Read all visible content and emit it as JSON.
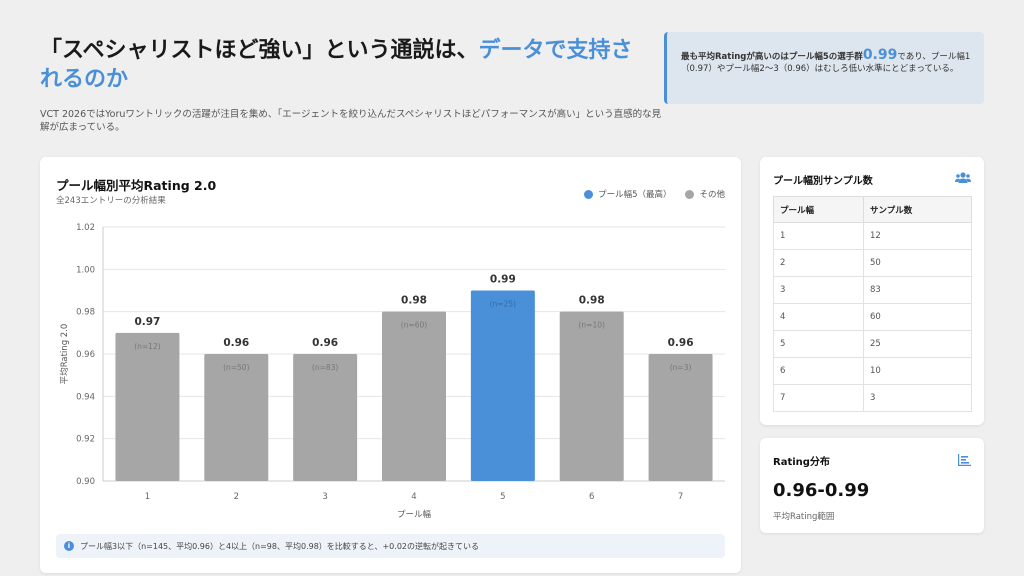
{
  "header": {
    "title_part1": "「スペシャリストほど強い」という通説は、",
    "title_highlight": "データで支持されるのか",
    "subtitle": "VCT 2026ではYoruワントリックの活躍が注目を集め、「エージェントを絞り込んだスペシャリストほどパフォーマンスが高い」という直感的な見解が広まっている。"
  },
  "callout": {
    "text_before": "最も平均Ratingが高いのはプール幅5の選手群",
    "highlight_value": "0.99",
    "text_after": "であり、プール幅1（0.97）やプール幅2〜3（0.96）はむしろ低い水準にとどまっている。"
  },
  "chart_card": {
    "title": "プール幅別平均Rating 2.0",
    "subtitle": "全243エントリーの分析結果",
    "legend": [
      {
        "label": "プール幅5（最高）",
        "color": "#4a90d9"
      },
      {
        "label": "その他",
        "color": "#a6a6a6"
      }
    ],
    "note": "プール幅3以下（n=145、平均0.96）と4以上（n=98、平均0.98）を比較すると、+0.02の逆転が起きている"
  },
  "chart_data": {
    "type": "bar",
    "categories": [
      "1",
      "2",
      "3",
      "4",
      "5",
      "6",
      "7"
    ],
    "values": [
      0.97,
      0.96,
      0.96,
      0.98,
      0.99,
      0.98,
      0.96
    ],
    "value_labels": [
      "0.97",
      "0.96",
      "0.96",
      "0.98",
      "0.99",
      "0.98",
      "0.96"
    ],
    "sample_labels": [
      "(n=12)",
      "(n=50)",
      "(n=83)",
      "(n=60)",
      "(n=25)",
      "(n=10)",
      "(n=3)"
    ],
    "highlight_index": 4,
    "highlight_color": "#4a90d9",
    "bar_color": "#a6a6a6",
    "xlabel": "プール幅",
    "ylabel": "平均Rating 2.0",
    "ylim": [
      0.9,
      1.02
    ],
    "yticks": [
      "0.90",
      "0.92",
      "0.94",
      "0.96",
      "0.98",
      "1.00",
      "1.02"
    ],
    "grid": true
  },
  "sample_table": {
    "title": "プール幅別サンプル数",
    "icon": "users-icon",
    "headers": [
      "プール幅",
      "サンプル数"
    ],
    "rows": [
      [
        "1",
        "12"
      ],
      [
        "2",
        "50"
      ],
      [
        "3",
        "83"
      ],
      [
        "4",
        "60"
      ],
      [
        "5",
        "25"
      ],
      [
        "6",
        "10"
      ],
      [
        "7",
        "3"
      ]
    ]
  },
  "distribution": {
    "title": "Rating分布",
    "icon": "bar-chart-icon",
    "value": "0.96-0.99",
    "label": "平均Rating範囲"
  },
  "colors": {
    "accent": "#4a90d9",
    "background": "#efefef"
  }
}
